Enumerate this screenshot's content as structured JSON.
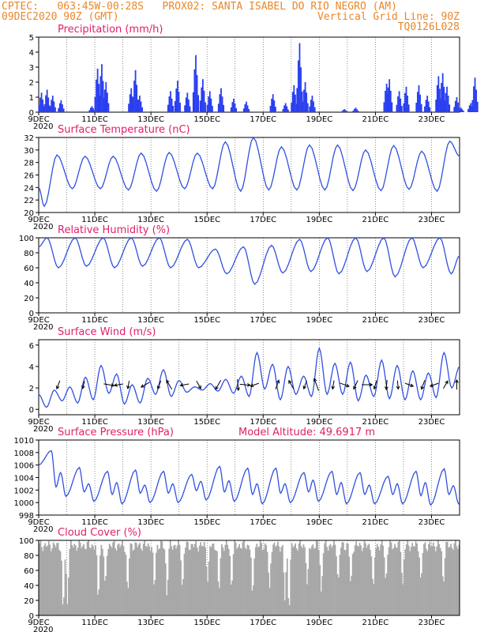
{
  "header": {
    "line1": "CPTEC:   063:45W-00:28S   PROX02: SANTA ISABEL DO RIO NEGRO (AM)",
    "line2_left": "09DEC2020 90Z (GMT)",
    "line2_right": "Vertical Grid Line: 90Z",
    "line3_right": "TQ0126L028"
  },
  "x_ticks": [
    "9DEC",
    "11DEC",
    "13DEC",
    "15DEC",
    "17DEC",
    "19DEC",
    "21DEC",
    "23DEC"
  ],
  "under_tick": "2020",
  "colors": {
    "line": "#3050e0",
    "bar": "#2a3ff0",
    "cloud": "#a8a8a8",
    "title": "#e0206a",
    "header": "#e8872a"
  },
  "chart_data": [
    {
      "type": "bar",
      "title": "Precipitation (mm/h)",
      "x_unit": "day offset from 9DEC",
      "ylim": [
        0,
        5
      ],
      "yticks": [
        "0",
        "1",
        "2",
        "3",
        "4",
        "5"
      ],
      "events": [
        [
          0.1,
          1.3
        ],
        [
          0.3,
          1.5
        ],
        [
          0.5,
          1.1
        ],
        [
          0.8,
          0.8
        ],
        [
          1.9,
          0.4
        ],
        [
          2.1,
          2.9
        ],
        [
          2.25,
          3.2
        ],
        [
          2.4,
          2.0
        ],
        [
          3.3,
          1.6
        ],
        [
          3.45,
          2.8
        ],
        [
          3.6,
          1.1
        ],
        [
          4.7,
          1.4
        ],
        [
          4.95,
          2.1
        ],
        [
          5.3,
          1.3
        ],
        [
          5.6,
          3.8
        ],
        [
          5.85,
          2.2
        ],
        [
          6.1,
          1.4
        ],
        [
          6.5,
          1.6
        ],
        [
          6.95,
          0.9
        ],
        [
          7.4,
          0.7
        ],
        [
          8.35,
          1.2
        ],
        [
          8.8,
          0.6
        ],
        [
          9.1,
          1.8
        ],
        [
          9.3,
          4.6
        ],
        [
          9.5,
          2.0
        ],
        [
          9.75,
          1.1
        ],
        [
          10.9,
          0.2
        ],
        [
          11.3,
          0.3
        ],
        [
          12.4,
          1.9
        ],
        [
          12.5,
          2.2
        ],
        [
          12.85,
          1.4
        ],
        [
          13.1,
          1.7
        ],
        [
          13.55,
          1.8
        ],
        [
          13.85,
          1.1
        ],
        [
          14.25,
          2.4
        ],
        [
          14.4,
          2.6
        ],
        [
          14.55,
          1.7
        ],
        [
          14.9,
          1.0
        ],
        [
          15.05,
          0.3
        ],
        [
          15.4,
          0.6
        ],
        [
          15.55,
          2.3
        ]
      ]
    },
    {
      "type": "line",
      "title": "Surface Temperature (nC)",
      "x_unit": "day offset from 9DEC",
      "ylim": [
        20,
        32
      ],
      "yticks": [
        "20",
        "22",
        "24",
        "26",
        "28",
        "30",
        "32"
      ],
      "daily_min": [
        21.0,
        23.8,
        23.8,
        23.6,
        23.4,
        23.8,
        23.8,
        23.4,
        23.6,
        23.6,
        23.6,
        23.5,
        23.5,
        23.7,
        23.4
      ],
      "daily_max": [
        29.2,
        29.0,
        29.0,
        29.5,
        29.6,
        29.5,
        31.3,
        32.0,
        30.5,
        30.8,
        30.8,
        30.0,
        30.7,
        29.8,
        31.4
      ],
      "end_value": 29.0
    },
    {
      "type": "line",
      "title": "Relative Humidity (%)",
      "x_unit": "day offset from 9DEC",
      "ylim": [
        0,
        100
      ],
      "yticks": [
        "0",
        "20",
        "40",
        "60",
        "80",
        "100"
      ],
      "daily_min": [
        60,
        62,
        60,
        62,
        60,
        60,
        52,
        38,
        53,
        55,
        52,
        55,
        48,
        60,
        52
      ],
      "daily_max": [
        100,
        100,
        100,
        100,
        100,
        98,
        85,
        88,
        90,
        98,
        100,
        100,
        100,
        100,
        100
      ],
      "end_value": 76
    },
    {
      "type": "line",
      "title": "Surface Wind (m/s)",
      "x_unit": "day offset from 9DEC",
      "ylim": [
        -0.5,
        6.5
      ],
      "yticks": [
        "0",
        "2",
        "4",
        "6"
      ],
      "speed": [
        1.4,
        0.2,
        1.8,
        0.8,
        2.1,
        0.6,
        3.0,
        0.9,
        4.1,
        1.5,
        3.3,
        0.5,
        2.3,
        0.6,
        2.9,
        1.4,
        3.7,
        1.2,
        2.7,
        1.6,
        2.1,
        1.8,
        2.4,
        1.7,
        2.8,
        1.5,
        3.1,
        1.2,
        5.3,
        1.9,
        4.2,
        0.9,
        4.0,
        1.4,
        3.1,
        1.2,
        5.7,
        1.4,
        4.3,
        1.4,
        4.4,
        0.8,
        3.2,
        1.2,
        4.6,
        1.0,
        4.1,
        0.9,
        3.6,
        0.9,
        3.4,
        1.1,
        5.3,
        2.0,
        4.0
      ],
      "arrows": [
        [
          0.7,
          200,
          1.0
        ],
        [
          1.6,
          195,
          0.9
        ],
        [
          2.5,
          100,
          1.2
        ],
        [
          2.85,
          260,
          1.0
        ],
        [
          3.2,
          190,
          0.9
        ],
        [
          3.8,
          240,
          1.1
        ],
        [
          4.3,
          200,
          1.0
        ],
        [
          4.65,
          330,
          1.2
        ],
        [
          5.2,
          260,
          1.0
        ],
        [
          5.7,
          150,
          1.0
        ],
        [
          6.4,
          210,
          1.2
        ],
        [
          7.1,
          175,
          1.3
        ],
        [
          7.35,
          95,
          1.2
        ],
        [
          7.7,
          250,
          1.0
        ],
        [
          8.5,
          20,
          1.1
        ],
        [
          9.0,
          330,
          1.1
        ],
        [
          9.5,
          200,
          1.0
        ],
        [
          9.9,
          340,
          1.5
        ],
        [
          10.5,
          190,
          1.0
        ],
        [
          10.9,
          110,
          1.1
        ],
        [
          11.3,
          205,
          1.1
        ],
        [
          11.7,
          90,
          1.2
        ],
        [
          12.0,
          195,
          1.0
        ],
        [
          12.4,
          185,
          1.1
        ],
        [
          12.8,
          175,
          1.0
        ],
        [
          13.2,
          110,
          1.0
        ],
        [
          13.7,
          200,
          1.1
        ],
        [
          14.1,
          250,
          1.0
        ],
        [
          14.5,
          30,
          1.0
        ],
        [
          14.9,
          0,
          1.1
        ]
      ],
      "end_value": 4.0
    },
    {
      "type": "line",
      "title": "Surface Pressure (hPa)",
      "annotation": "Model Altitude: 49.6917  m",
      "x_unit": "day offset from 9DEC",
      "ylim": [
        998,
        1010
      ],
      "yticks": [
        "998",
        "1000",
        "1002",
        "1004",
        "1006",
        "1008",
        "1010"
      ],
      "daily_peak1": [
        1008.3,
        1005.6,
        1005.0,
        1005.2,
        1005.0,
        1004.5,
        1005.8,
        1005.5,
        1005.5,
        1004.8,
        1005.0,
        1004.8,
        1004.2,
        1005.0,
        1005.4
      ],
      "daily_peak2": [
        1004.8,
        1003.0,
        1003.2,
        1002.8,
        1003.0,
        1003.4,
        1003.5,
        1003.0,
        1003.0,
        1003.6,
        1003.2,
        1002.8,
        1003.0,
        1003.2,
        1002.7
      ],
      "daily_min": [
        1001.0,
        1000.2,
        999.8,
        1000.0,
        1000.0,
        1000.4,
        1000.2,
        999.8,
        1000.0,
        1000.2,
        999.8,
        999.8,
        999.8,
        999.6,
        999.8
      ],
      "start_value": 1006.0,
      "end_value": 1000.0
    },
    {
      "type": "area",
      "title": "Cloud Cover (%)",
      "x_unit": "day offset from 9DEC",
      "ylim": [
        0,
        100
      ],
      "yticks": [
        "0",
        "20",
        "40",
        "60",
        "80",
        "100"
      ],
      "typical_cover": 93,
      "dips": [
        [
          0.85,
          5
        ],
        [
          1.0,
          15
        ],
        [
          2.1,
          20
        ],
        [
          2.35,
          40
        ],
        [
          3.15,
          30
        ],
        [
          4.1,
          35
        ],
        [
          4.55,
          25
        ],
        [
          5.1,
          35
        ],
        [
          6.0,
          45
        ],
        [
          6.4,
          30
        ],
        [
          6.85,
          35
        ],
        [
          7.6,
          25
        ],
        [
          8.2,
          35
        ],
        [
          8.75,
          20
        ],
        [
          8.9,
          5
        ],
        [
          9.55,
          40
        ],
        [
          10.05,
          30
        ],
        [
          10.65,
          45
        ],
        [
          11.1,
          40
        ],
        [
          11.9,
          35
        ],
        [
          12.35,
          45
        ],
        [
          12.95,
          40
        ],
        [
          13.6,
          45
        ],
        [
          14.4,
          40
        ]
      ]
    }
  ]
}
